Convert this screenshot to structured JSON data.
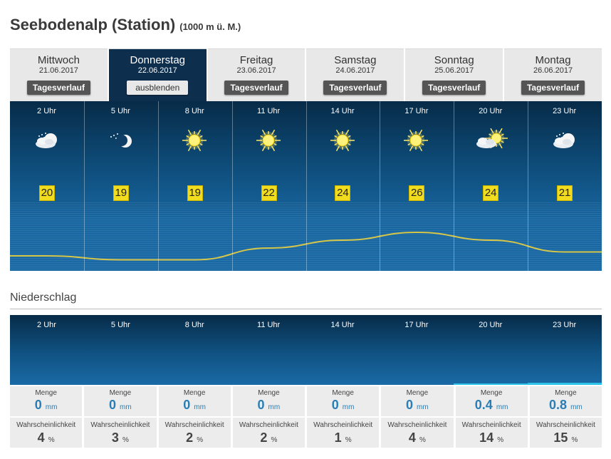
{
  "header": {
    "title": "Seebodenalp (Station)",
    "subtitle": "(1000 m ü. M.)"
  },
  "tabs": [
    {
      "day": "Mittwoch",
      "date": "21.06.2017",
      "button": "Tagesverlauf",
      "active": false
    },
    {
      "day": "Donnerstag",
      "date": "22.06.2017",
      "button": "ausblenden",
      "active": true
    },
    {
      "day": "Freitag",
      "date": "23.06.2017",
      "button": "Tagesverlauf",
      "active": false
    },
    {
      "day": "Samstag",
      "date": "24.06.2017",
      "button": "Tagesverlauf",
      "active": false
    },
    {
      "day": "Sonntag",
      "date": "25.06.2017",
      "button": "Tagesverlauf",
      "active": false
    },
    {
      "day": "Montag",
      "date": "26.06.2017",
      "button": "Tagesverlauf",
      "active": false
    }
  ],
  "hourly": [
    {
      "time": "2 Uhr",
      "icon": "moon-cloud-icon",
      "temp": "20"
    },
    {
      "time": "5 Uhr",
      "icon": "moon-stars-icon",
      "temp": "19"
    },
    {
      "time": "8 Uhr",
      "icon": "sun-icon",
      "temp": "19"
    },
    {
      "time": "11 Uhr",
      "icon": "sun-icon",
      "temp": "22"
    },
    {
      "time": "14 Uhr",
      "icon": "sun-icon",
      "temp": "24"
    },
    {
      "time": "17 Uhr",
      "icon": "sun-icon",
      "temp": "26"
    },
    {
      "time": "20 Uhr",
      "icon": "sun-cloud-icon",
      "temp": "24"
    },
    {
      "time": "23 Uhr",
      "icon": "moon-cloud-icon",
      "temp": "21"
    }
  ],
  "precip": {
    "heading": "Niederschlag",
    "amount_label": "Menge",
    "prob_label": "Wahrscheinlichkeit",
    "unit_mm": "mm",
    "unit_pct": "%",
    "items": [
      {
        "time": "2 Uhr",
        "amount": "0",
        "prob": "4"
      },
      {
        "time": "5 Uhr",
        "amount": "0",
        "prob": "3"
      },
      {
        "time": "8 Uhr",
        "amount": "0",
        "prob": "2"
      },
      {
        "time": "11 Uhr",
        "amount": "0",
        "prob": "2"
      },
      {
        "time": "14 Uhr",
        "amount": "0",
        "prob": "1"
      },
      {
        "time": "17 Uhr",
        "amount": "0",
        "prob": "4"
      },
      {
        "time": "20 Uhr",
        "amount": "0.4",
        "prob": "14"
      },
      {
        "time": "23 Uhr",
        "amount": "0.8",
        "prob": "15"
      }
    ]
  },
  "colors": {
    "accent": "#0e2e4e",
    "temp_box": "#f2dc1e",
    "curve": "#d6c64a",
    "amount": "#2a7db5"
  }
}
